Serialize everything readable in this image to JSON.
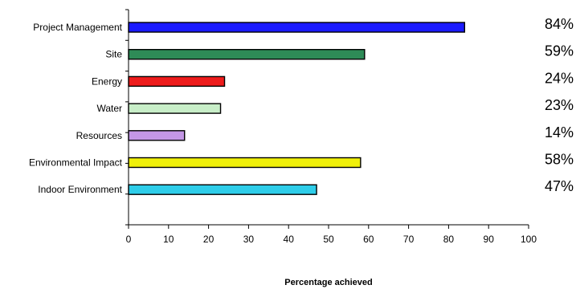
{
  "chart_data": {
    "type": "bar",
    "orientation": "horizontal",
    "categories": [
      "Project Management",
      "Site",
      "Energy",
      "Water",
      "Resources",
      "Environmental Impact",
      "Indoor Environment"
    ],
    "values": [
      84,
      59,
      24,
      23,
      14,
      58,
      47
    ],
    "value_labels": [
      "84%",
      "59%",
      "24%",
      "23%",
      "14%",
      "58%",
      "47%"
    ],
    "colors": [
      "#1a1aff",
      "#2e8b57",
      "#ee1c1c",
      "#c8eec8",
      "#c497e6",
      "#f0f00a",
      "#2ecde9"
    ],
    "xlabel": "Percentage achieved",
    "ylabel": "",
    "xlim": [
      0,
      100
    ],
    "xticks": [
      0,
      10,
      20,
      30,
      40,
      50,
      60,
      70,
      80,
      90,
      100
    ],
    "grid": false,
    "legend": "none"
  }
}
